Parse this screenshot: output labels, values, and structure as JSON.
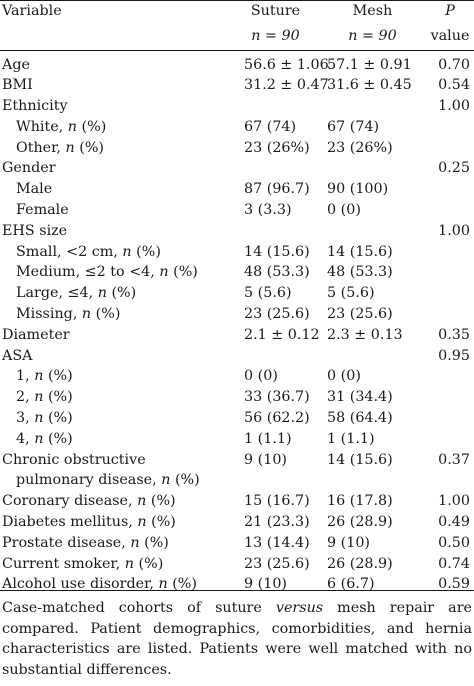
{
  "header": {
    "variable": "Variable",
    "suture": "Suture",
    "suture_n": "n = 90",
    "mesh": "Mesh",
    "mesh_n": "n = 90",
    "p": "P",
    "p_sub": "value"
  },
  "rows": [
    {
      "label": "Age",
      "suture": "56.6 ± 1.06",
      "mesh": "57.1 ± 0.91",
      "p": "0.70"
    },
    {
      "label": "BMI",
      "suture": "31.2 ± 0.47",
      "mesh": "31.6 ± 0.45",
      "p": "0.54"
    },
    {
      "label": "Ethnicity",
      "suture": "",
      "mesh": "",
      "p": "1.00"
    },
    {
      "label": "White, n (%)",
      "suture": "67 (74)",
      "mesh": "67 (74)",
      "p": ""
    },
    {
      "label": "Other, n (%)",
      "suture": "23 (26%)",
      "mesh": "23 (26%)",
      "p": ""
    },
    {
      "label": "Gender",
      "suture": "",
      "mesh": "",
      "p": "0.25"
    },
    {
      "label": "Male",
      "suture": "87 (96.7)",
      "mesh": "90 (100)",
      "p": ""
    },
    {
      "label": "Female",
      "suture": "3 (3.3)",
      "mesh": "0 (0)",
      "p": ""
    },
    {
      "label": "EHS size",
      "suture": "",
      "mesh": "",
      "p": "1.00"
    },
    {
      "label": "Small, <2 cm, n (%)",
      "suture": "14 (15.6)",
      "mesh": "14 (15.6)",
      "p": ""
    },
    {
      "label": "Medium, ≤2 to <4, n (%)",
      "suture": "48 (53.3)",
      "mesh": "48 (53.3)",
      "p": ""
    },
    {
      "label": "Large, ≤4, n (%)",
      "suture": "5 (5.6)",
      "mesh": "5 (5.6)",
      "p": ""
    },
    {
      "label": "Missing, n (%)",
      "suture": "23 (25.6)",
      "mesh": "23 (25.6)",
      "p": ""
    },
    {
      "label": "Diameter",
      "suture": "2.1 ± 0.12",
      "mesh": "2.3 ± 0.13",
      "p": "0.35"
    },
    {
      "label": "ASA",
      "suture": "",
      "mesh": "",
      "p": "0.95"
    },
    {
      "label": "1, n (%)",
      "suture": "0 (0)",
      "mesh": "0 (0)",
      "p": ""
    },
    {
      "label": "2, n (%)",
      "suture": "33 (36.7)",
      "mesh": "31 (34.4)",
      "p": ""
    },
    {
      "label": "3, n (%)",
      "suture": "56 (62.2)",
      "mesh": "58 (64.4)",
      "p": ""
    },
    {
      "label": "4, n (%)",
      "suture": "1 (1.1)",
      "mesh": "1 (1.1)",
      "p": ""
    },
    {
      "label": "Chronic obstructive",
      "label2": "pulmonary disease, n (%)",
      "suture": "9 (10)",
      "mesh": "14 (15.6)",
      "p": "0.37"
    },
    {
      "label": "Coronary disease, n (%)",
      "suture": "15 (16.7)",
      "mesh": "16 (17.8)",
      "p": "1.00"
    },
    {
      "label": "Diabetes mellitus, n (%)",
      "suture": "21 (23.3)",
      "mesh": "26 (28.9)",
      "p": "0.49"
    },
    {
      "label": "Prostate disease, n (%)",
      "suture": "13 (14.4)",
      "mesh": "9 (10)",
      "p": "0.50"
    },
    {
      "label": "Current smoker, n (%)",
      "suture": "23 (25.6)",
      "mesh": "26 (28.9)",
      "p": "0.74"
    },
    {
      "label": "Alcohol use disorder, n (%)",
      "suture": "9 (10)",
      "mesh": "6 (6.7)",
      "p": "0.59"
    }
  ],
  "footnote": "Case-matched cohorts of suture versus mesh repair are compared. Patient demographics, comorbidities, and hernia characteristics are listed. Patients were well matched with no substantial differences."
}
